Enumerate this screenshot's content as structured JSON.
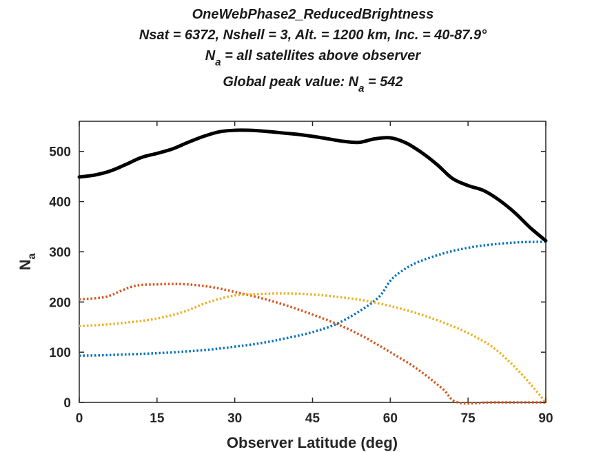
{
  "chart_data": {
    "type": "line",
    "title": {
      "line1": "OneWebPhase2_ReducedBrightness",
      "line2": "Nsat = 6372, Nshell = 3, Alt. = 1200 km, Inc. = 40-87.9°",
      "line3_prefix": "N",
      "line3_sub": "a",
      "line3_suffix": " = all satellites above observer",
      "line4_prefix": "Global peak value: N",
      "line4_sub": "a",
      "line4_suffix": " = 542"
    },
    "xlabel": "Observer Latitude (deg)",
    "ylabel": "N",
    "ylabel_sub": "a",
    "xlim": [
      0,
      90
    ],
    "ylim": [
      0,
      560
    ],
    "xticks": [
      0,
      15,
      30,
      45,
      60,
      75,
      90
    ],
    "yticks": [
      0,
      100,
      200,
      300,
      400,
      500
    ],
    "grid": false,
    "series": [
      {
        "color": "#000000",
        "style": "solid",
        "x": [
          0,
          3,
          6,
          9,
          12,
          15,
          18,
          21,
          24,
          27,
          30,
          33,
          36,
          39,
          42,
          45,
          48,
          51,
          54,
          57,
          60,
          63,
          66,
          69,
          72,
          75,
          78,
          81,
          84,
          87,
          90
        ],
        "y": [
          449,
          453,
          461,
          474,
          488,
          496,
          505,
          518,
          530,
          539,
          542,
          542,
          540,
          537,
          534,
          530,
          525,
          520,
          518,
          525,
          527,
          517,
          498,
          474,
          446,
          432,
          422,
          403,
          378,
          348,
          322
        ]
      },
      {
        "color": "#0072BD",
        "style": "dotted",
        "x": [
          0,
          5,
          10,
          15,
          20,
          25,
          30,
          35,
          40,
          45,
          50,
          55,
          58,
          60,
          62,
          65,
          70,
          75,
          80,
          85,
          90
        ],
        "y": [
          93,
          94,
          96,
          98,
          101,
          105,
          111,
          118,
          128,
          140,
          158,
          188,
          212,
          242,
          260,
          278,
          296,
          308,
          315,
          319,
          320
        ]
      },
      {
        "color": "#D95319",
        "style": "dotted",
        "x": [
          0,
          5,
          8,
          10,
          12,
          15,
          18,
          21,
          24,
          27,
          30,
          35,
          40,
          45,
          50,
          55,
          60,
          65,
          70,
          73,
          80,
          90
        ],
        "y": [
          205,
          210,
          222,
          230,
          234,
          235,
          236,
          235,
          232,
          227,
          220,
          208,
          193,
          175,
          155,
          130,
          100,
          68,
          28,
          0,
          0,
          0
        ]
      },
      {
        "color": "#EDB120",
        "style": "dotted",
        "x": [
          0,
          5,
          10,
          15,
          20,
          25,
          30,
          35,
          40,
          45,
          50,
          55,
          60,
          65,
          70,
          75,
          80,
          85,
          90
        ],
        "y": [
          152,
          155,
          160,
          167,
          180,
          200,
          213,
          216,
          217,
          215,
          210,
          203,
          192,
          178,
          160,
          138,
          108,
          60,
          0
        ]
      }
    ]
  }
}
